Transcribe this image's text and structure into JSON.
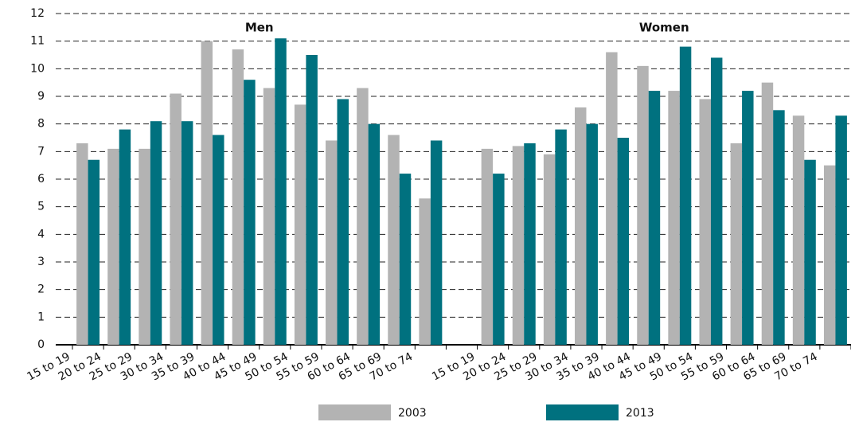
{
  "chart_data": {
    "type": "bar",
    "ylim": [
      0,
      12
    ],
    "yticks": [
      0,
      1,
      2,
      3,
      4,
      5,
      6,
      7,
      8,
      9,
      10,
      11,
      12
    ],
    "grid": true,
    "groups": [
      {
        "title": "Men",
        "categories": [
          "15 to 19",
          "20 to 24",
          "25 to 29",
          "30 to 34",
          "35 to 39",
          "40 to 44",
          "45 to 49",
          "50 to 54",
          "55 to 59",
          "60 to 64",
          "65 to 69",
          "70 to 74"
        ]
      },
      {
        "title": "Women",
        "categories": [
          "15 to 19",
          "20 to 24",
          "25 to 29",
          "30  to 34",
          "35 to 39",
          "40 to 44",
          "45 to 49",
          "50 to 54",
          "55 to 59",
          "60 to 64",
          "65 to 69",
          "70 to 74"
        ]
      }
    ],
    "series": [
      {
        "name": "2003",
        "color": "#b3b3b3",
        "values": [
          [
            7.3,
            7.1,
            7.1,
            9.1,
            11.0,
            10.7,
            9.3,
            8.7,
            7.4,
            9.3,
            7.6,
            5.3
          ],
          [
            7.1,
            7.2,
            6.9,
            8.6,
            10.6,
            10.1,
            9.2,
            8.9,
            7.3,
            9.5,
            8.3,
            6.5
          ]
        ]
      },
      {
        "name": "2013",
        "color": "#00717f",
        "values": [
          [
            6.7,
            7.8,
            8.1,
            8.1,
            7.6,
            9.6,
            11.1,
            10.5,
            8.9,
            8.0,
            6.2,
            7.4
          ],
          [
            6.2,
            7.3,
            7.8,
            8.0,
            7.5,
            9.2,
            10.8,
            10.4,
            9.2,
            8.5,
            6.7,
            8.3
          ]
        ]
      }
    ]
  }
}
